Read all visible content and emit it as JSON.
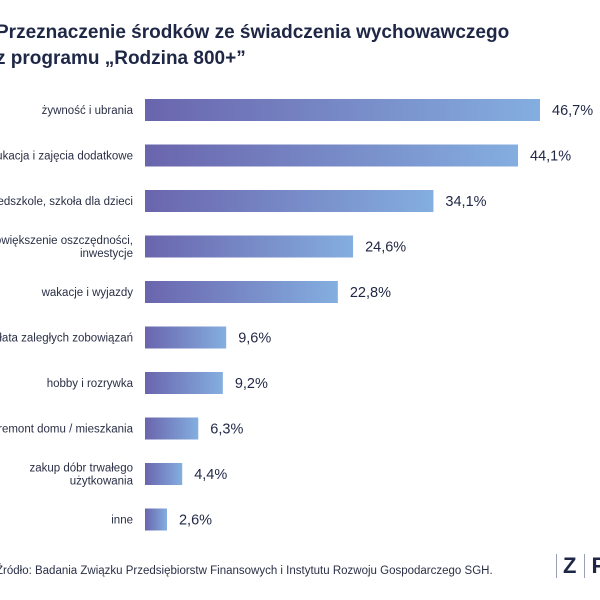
{
  "title_line1": "Przeznaczenie środków ze świadczenia wychowawczego",
  "title_line2": "z programu „Rodzina 800+”",
  "source": "Źródło: Badania Związku Przedsiębiorstw Finansowych i Instytutu Rozwoju Gospodarczego SGH.",
  "logo": {
    "letter1": "Z",
    "letter2": "P"
  },
  "colors": {
    "bar_start": "#6a65ad",
    "bar_end": "#84aee0"
  },
  "chart_data": {
    "type": "bar",
    "orientation": "horizontal",
    "categories": [
      [
        "żywność i ubrania"
      ],
      [
        "edukacja i zajęcia dodatkowe"
      ],
      [
        "przedszkole, szkoła dla dzieci"
      ],
      [
        "powiększenie oszczędności,",
        "inwestycje"
      ],
      [
        "wakacje i wyjazdy"
      ],
      [
        "spłata zaległych zobowiązań"
      ],
      [
        "hobby i rozrywka"
      ],
      [
        "remont domu / mieszkania"
      ],
      [
        "zakup dóbr trwałego",
        "użytkowania"
      ],
      [
        "inne"
      ]
    ],
    "values": [
      46.7,
      44.1,
      34.1,
      24.6,
      22.8,
      9.6,
      9.2,
      6.3,
      4.4,
      2.6
    ],
    "value_labels": [
      "46,7%",
      "44,1%",
      "34,1%",
      "24,6%",
      "22,8%",
      "9,6%",
      "9,2%",
      "6,3%",
      "4,4%",
      "2,6%"
    ],
    "unit": "%",
    "xlim": [
      0,
      46.7
    ],
    "grid": false,
    "legend": "none"
  }
}
